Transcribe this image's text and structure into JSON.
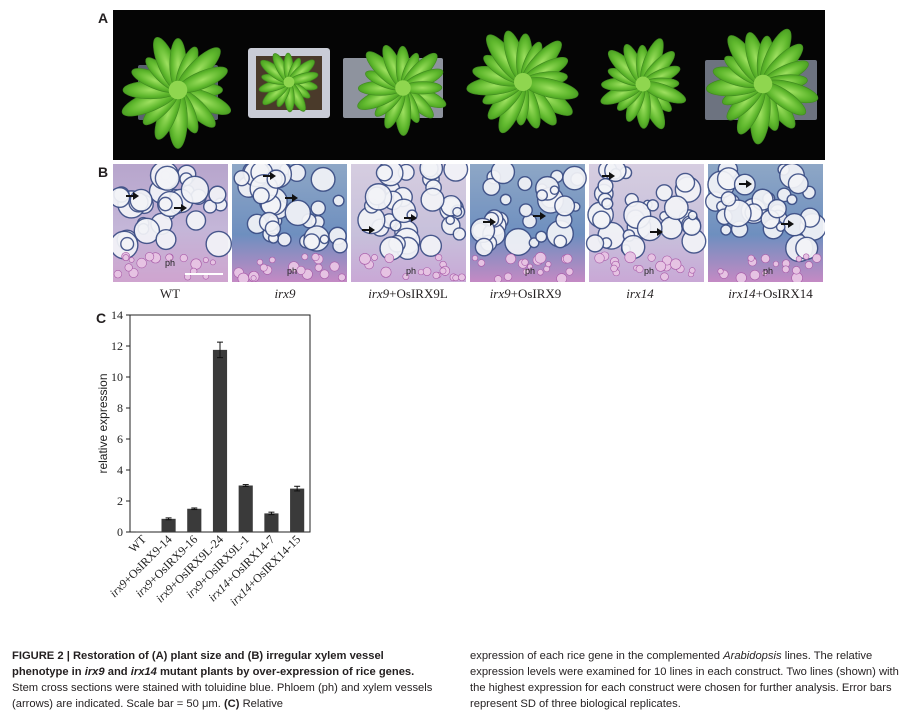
{
  "panels": {
    "a": "A",
    "b": "B",
    "c": "C"
  },
  "section_b": {
    "ph": "ph",
    "genotypes": [
      {
        "name": "WT",
        "suffix": ""
      },
      {
        "name": "irx9",
        "suffix": ""
      },
      {
        "name": "irx9",
        "suffix": "+OsIRX9L"
      },
      {
        "name": "irx9",
        "suffix": "+OsIRX9"
      },
      {
        "name": "irx14",
        "suffix": ""
      },
      {
        "name": "irx14",
        "suffix": "+OsIRX14"
      }
    ]
  },
  "chart_data": {
    "type": "bar",
    "ylabel": "relative expression",
    "ylim": [
      0,
      14
    ],
    "yticks": [
      0,
      2,
      4,
      6,
      8,
      10,
      12,
      14
    ],
    "categories": [
      "WT",
      "irx9+OsIRX9-14",
      "irx9+OsIRX9-16",
      "irx9+OsIRX9L-24",
      "irx9+OsIRX9L-1",
      "irx14+OsIRX14-7",
      "irx14+OsIRX14-15"
    ],
    "values": [
      0.02,
      0.85,
      1.5,
      11.75,
      3.0,
      1.2,
      2.8
    ],
    "errors": [
      0.02,
      0.06,
      0.05,
      0.5,
      0.06,
      0.08,
      0.15
    ],
    "bar_color": "#3a3a3a"
  },
  "caption": {
    "left": {
      "label": "FIGURE 2 | Restoration of (A) plant size and (B) irregular xylem vessel phenotype in ",
      "g1": "irx9",
      "and": " and ",
      "g2": "irx14",
      "label_end": " mutant plants by over-expression of rice genes.",
      "body": " Stem cross sections were stained with toluidine blue. Phloem (ph) and xylem vessels (arrows) are indicated. Scale bar = 50 μm. ",
      "c_ref": "(C)",
      "c_tail": " Relative"
    },
    "right": {
      "t1": "expression of each rice gene in the complemented ",
      "arab": "Arabidopsis",
      "t2": " lines. The relative expression levels were examined for 10 lines in each construct. Two lines (shown) with the highest expression for each construct were chosen for further analysis. Error bars represent SD of three biological replicates."
    }
  }
}
